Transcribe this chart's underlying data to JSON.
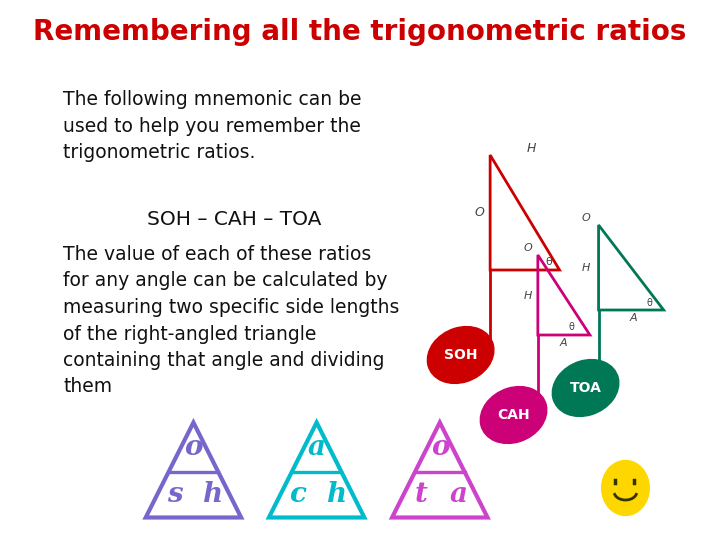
{
  "title": "Remembering all the trigonometric ratios",
  "title_color": "#CC0000",
  "title_fontsize": 20,
  "bg_color": "#FFFFFF",
  "body_text1": "The following mnemonic can be\nused to help you remember the\ntrigonometric ratios.",
  "mnemonic": "SOH – CAH – TOA",
  "body_text2": "The value of each of these ratios\nfor any angle can be calculated by\nmeasuring two specific side lengths\nof the right-angled triangle\ncontaining that angle and dividing\nthem",
  "body_fontsize": 13.5,
  "tri1_color": "#CC0000",
  "tri2_color": "#CC0077",
  "tri3_color": "#007755",
  "soh_color": "#CC0000",
  "cah_color": "#CC0077",
  "toa_color": "#007755",
  "btri1_color": "#7766CC",
  "btri2_color": "#00BBCC",
  "btri3_color": "#CC44CC"
}
